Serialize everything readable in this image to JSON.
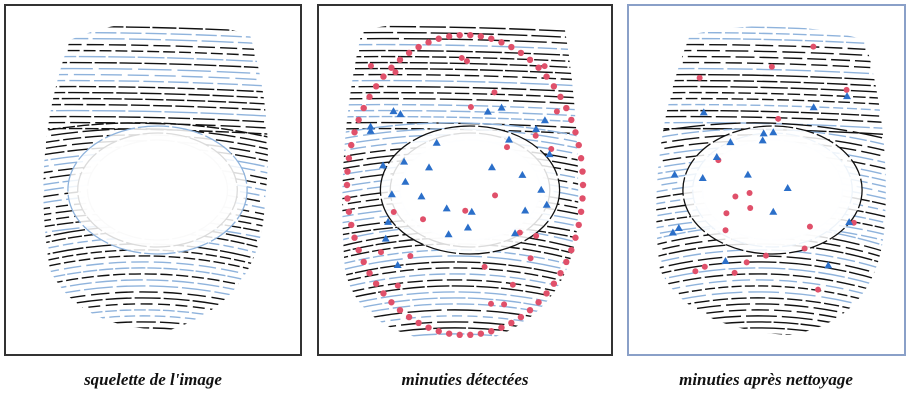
{
  "panels": [
    {
      "caption": "squelette de l'image"
    },
    {
      "caption": "minuties détectées"
    },
    {
      "caption": "minuties après nettoyage"
    }
  ]
}
